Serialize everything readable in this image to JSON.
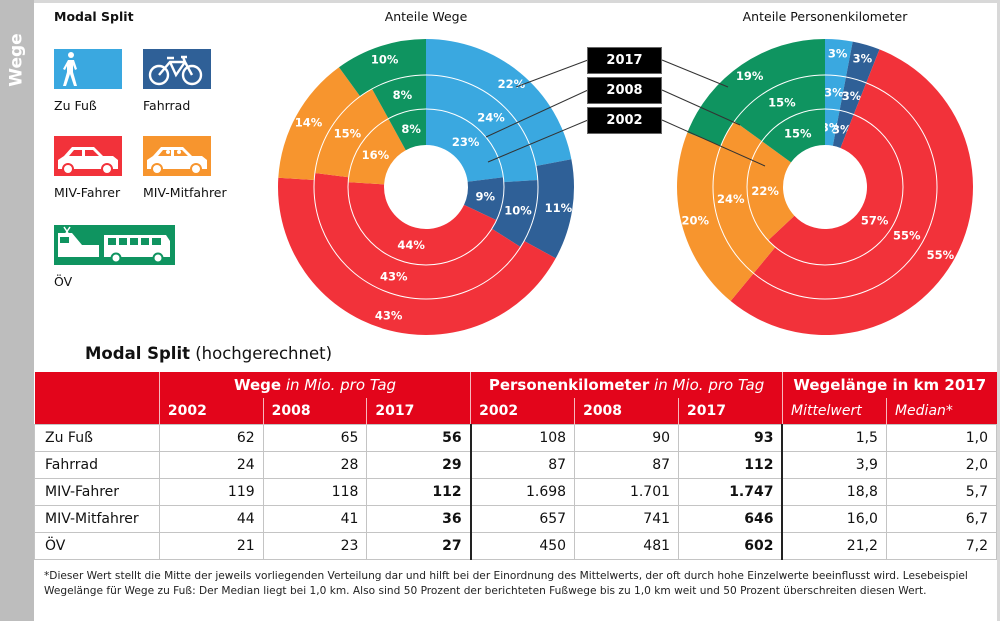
{
  "sidebar": {
    "label": "Wege"
  },
  "legend": {
    "title": "Modal Split",
    "items": [
      {
        "key": "fuss",
        "label": "Zu Fuß",
        "icon": "pedestrian-icon",
        "color": "#3aa8e0"
      },
      {
        "key": "rad",
        "label": "Fahrrad",
        "icon": "bicycle-icon",
        "color": "#2f6097"
      },
      {
        "key": "fahrer",
        "label": "MIV-Fahrer",
        "icon": "car-icon",
        "color": "#f2323a"
      },
      {
        "key": "mitfahrer",
        "label": "MIV-Mitfahrer",
        "icon": "car-passenger-icon",
        "color": "#f7952e"
      },
      {
        "key": "oev",
        "label": "ÖV",
        "icon": "train-bus-icon",
        "color": "#0f9460"
      }
    ]
  },
  "year_tags": [
    "2017",
    "2008",
    "2002"
  ],
  "chart_data": [
    {
      "type": "pie",
      "subtype": "multi-ring donut",
      "title": "Anteile Wege",
      "categories": [
        "Zu Fuß",
        "Fahrrad",
        "MIV-Fahrer",
        "MIV-Mitfahrer",
        "ÖV"
      ],
      "colors": [
        "#3aa8e0",
        "#2f6097",
        "#f2323a",
        "#f7952e",
        "#0f9460"
      ],
      "rings_inner_to_outer": [
        "2002",
        "2008",
        "2017"
      ],
      "series": [
        {
          "name": "2002",
          "values": [
            23,
            9,
            44,
            16,
            8
          ]
        },
        {
          "name": "2008",
          "values": [
            24,
            10,
            43,
            15,
            8
          ]
        },
        {
          "name": "2017",
          "values": [
            22,
            11,
            43,
            14,
            10
          ]
        }
      ],
      "unit": "%"
    },
    {
      "type": "pie",
      "subtype": "multi-ring donut",
      "title": "Anteile Personenkilometer",
      "categories": [
        "Zu Fuß",
        "Fahrrad",
        "MIV-Fahrer",
        "MIV-Mitfahrer",
        "ÖV"
      ],
      "colors": [
        "#3aa8e0",
        "#2f6097",
        "#f2323a",
        "#f7952e",
        "#0f9460"
      ],
      "rings_inner_to_outer": [
        "2002",
        "2008",
        "2017"
      ],
      "series": [
        {
          "name": "2002",
          "values": [
            3,
            3,
            57,
            22,
            15
          ]
        },
        {
          "name": "2008",
          "values": [
            3,
            3,
            55,
            24,
            15
          ]
        },
        {
          "name": "2017",
          "values": [
            3,
            3,
            55,
            20,
            19
          ]
        }
      ],
      "unit": "%"
    }
  ],
  "table": {
    "title_bold": "Modal Split",
    "title_rest": " (hochgerechnet)",
    "groups": [
      {
        "bold": "Wege",
        "italic": " in Mio. pro Tag"
      },
      {
        "bold": "Personenkilometer",
        "italic": " in Mio. pro Tag"
      },
      {
        "bold": "Wegelänge in km 2017",
        "italic": ""
      }
    ],
    "subheaders": [
      "2002",
      "2008",
      "2017",
      "2002",
      "2008",
      "2017",
      "Mittelwert",
      "Median*"
    ],
    "rows": [
      {
        "label": "Zu Fuß",
        "values": [
          "62",
          "65",
          "56",
          "108",
          "90",
          "93",
          "1,5",
          "1,0"
        ]
      },
      {
        "label": "Fahrrad",
        "values": [
          "24",
          "28",
          "29",
          "87",
          "87",
          "112",
          "3,9",
          "2,0"
        ]
      },
      {
        "label": "MIV-Fahrer",
        "values": [
          "119",
          "118",
          "112",
          "1.698",
          "1.701",
          "1.747",
          "18,8",
          "5,7"
        ]
      },
      {
        "label": "MIV-Mitfahrer",
        "values": [
          "44",
          "41",
          "36",
          "657",
          "741",
          "646",
          "16,0",
          "6,7"
        ]
      },
      {
        "label": "ÖV",
        "values": [
          "21",
          "23",
          "27",
          "450",
          "481",
          "602",
          "21,2",
          "7,2"
        ]
      }
    ]
  },
  "footnote": "*Dieser Wert stellt die Mitte der jeweils vorliegenden Verteilung dar und hilft bei der Einordnung des Mittelwerts, der oft durch hohe Einzelwerte beeinflusst wird. Lesebeispiel Wegelänge für Wege zu Fuß: Der Median liegt bei 1,0 km. Also sind 50 Prozent der berichteten Fußwege bis zu 1,0 km weit und 50 Prozent überschreiten diesen Wert."
}
